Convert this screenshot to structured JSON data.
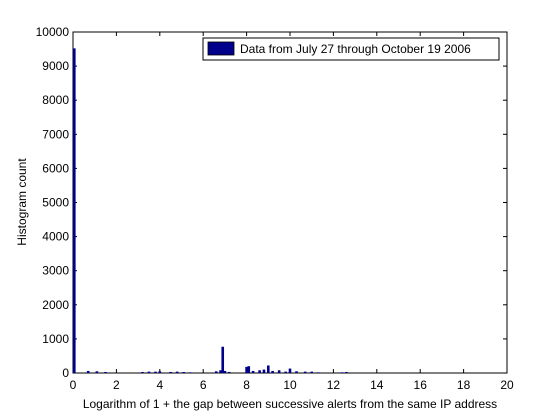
{
  "chart_data": {
    "type": "bar",
    "xlabel": "Logarithm of 1 + the gap between successive alerts from the same IP address",
    "ylabel": "Histogram count",
    "xlim": [
      0,
      20
    ],
    "ylim": [
      0,
      10000
    ],
    "xticks": [
      0,
      2,
      4,
      6,
      8,
      10,
      12,
      14,
      16,
      18,
      20
    ],
    "yticks": [
      0,
      1000,
      2000,
      3000,
      4000,
      5000,
      6000,
      7000,
      8000,
      9000,
      10000
    ],
    "bar_color": "#00008b",
    "legend": {
      "entries": [
        "Data from July 27 through October 19 2006"
      ],
      "placement": "top-right"
    },
    "series": [
      {
        "name": "Data from July 27 through October 19 2006",
        "x": [
          0.05,
          0.7,
          1.1,
          1.5,
          3.2,
          3.5,
          3.8,
          4.0,
          4.5,
          4.8,
          5.1,
          5.4,
          6.6,
          6.8,
          6.9,
          7.0,
          7.2,
          8.0,
          8.1,
          8.3,
          8.6,
          8.8,
          9.0,
          9.2,
          9.5,
          9.8,
          10.0,
          10.3,
          10.7,
          11.0,
          11.3,
          12.4,
          12.6
        ],
        "values": [
          9520,
          60,
          50,
          30,
          30,
          40,
          40,
          50,
          30,
          40,
          30,
          20,
          50,
          80,
          770,
          60,
          30,
          180,
          200,
          60,
          80,
          100,
          220,
          60,
          80,
          40,
          130,
          50,
          40,
          40,
          20,
          20,
          30
        ]
      }
    ]
  }
}
